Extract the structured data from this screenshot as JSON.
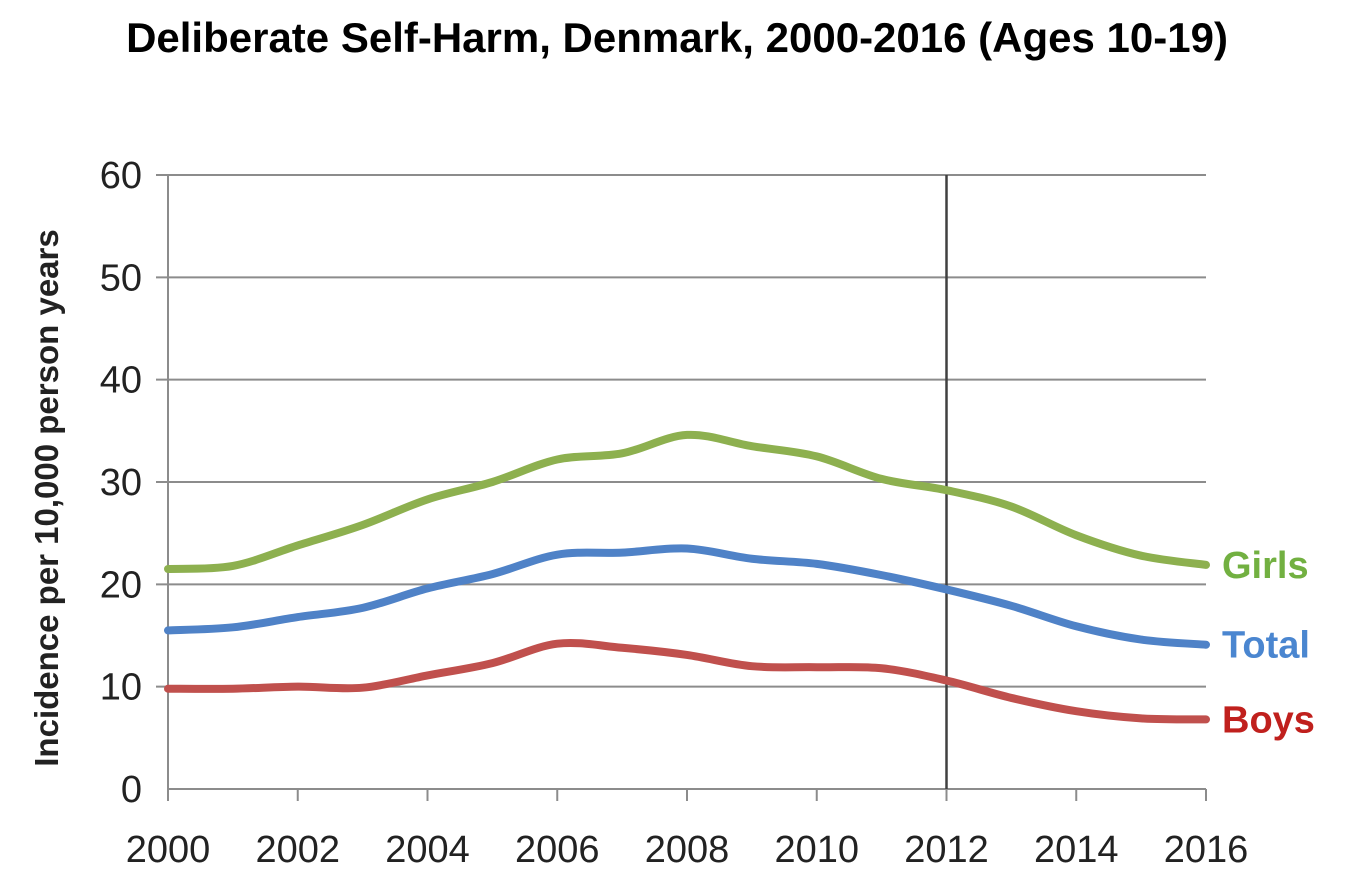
{
  "chart_data": {
    "type": "line",
    "title": "Deliberate Self-Harm, Denmark, 2000-2016 (Ages 10-19)",
    "xlabel": "",
    "ylabel": "Incidence per 10,000 person years",
    "x": [
      2000,
      2001,
      2002,
      2003,
      2004,
      2005,
      2006,
      2007,
      2008,
      2009,
      2010,
      2011,
      2012,
      2013,
      2014,
      2015,
      2016
    ],
    "xticks": [
      "2000",
      "2002",
      "2004",
      "2006",
      "2008",
      "2010",
      "2012",
      "2014",
      "2016"
    ],
    "yticks": [
      "0",
      "10",
      "20",
      "30",
      "40",
      "50",
      "60"
    ],
    "xlim": [
      2000,
      2016
    ],
    "ylim": [
      0,
      60
    ],
    "grid": "horizontal",
    "reference_line_x": 2012,
    "legend": "inline-right",
    "series": [
      {
        "name": "Girls",
        "color": "#8db04f",
        "values": [
          21.5,
          21.8,
          23.8,
          25.8,
          28.3,
          30.0,
          32.2,
          32.8,
          34.6,
          33.5,
          32.5,
          30.3,
          29.2,
          27.6,
          24.8,
          22.8,
          21.9
        ]
      },
      {
        "name": "Total",
        "color": "#4f82c7",
        "values": [
          15.5,
          15.8,
          16.8,
          17.7,
          19.6,
          21.0,
          22.9,
          23.1,
          23.5,
          22.5,
          22.0,
          20.9,
          19.5,
          17.9,
          15.9,
          14.6,
          14.1
        ]
      },
      {
        "name": "Boys",
        "color": "#c0504d",
        "values": [
          9.8,
          9.8,
          10.0,
          9.9,
          11.1,
          12.3,
          14.2,
          13.8,
          13.1,
          12.0,
          11.9,
          11.8,
          10.6,
          8.9,
          7.6,
          6.9,
          6.8
        ]
      }
    ],
    "series_label_colors": {
      "Girls": "#72b041",
      "Total": "#4a86d0",
      "Boys": "#c0201d"
    }
  }
}
